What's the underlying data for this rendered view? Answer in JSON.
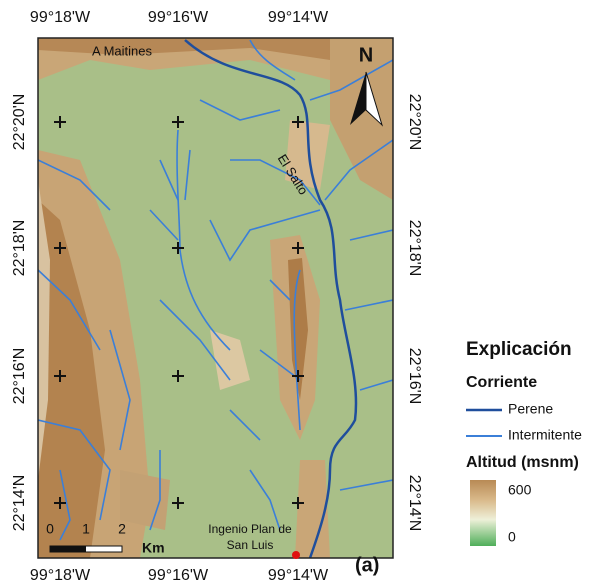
{
  "map": {
    "lon_labels": [
      "99°18'W",
      "99°16'W",
      "99°14'W"
    ],
    "lat_labels": [
      "22°20'N",
      "22°18'N",
      "22°16'N",
      "22°14'N"
    ],
    "places": [
      "A Maitines",
      "El Salto"
    ],
    "site": [
      "Ingenio Plan de",
      "San Luis"
    ],
    "north": "N",
    "scale": {
      "ticks": [
        0,
        1,
        2
      ],
      "unit": "Km"
    },
    "panel_label": "(a)"
  },
  "legend": {
    "title": "Explicación",
    "streams_title": "Corriente",
    "streams": [
      "Perene",
      "Intermitente"
    ],
    "elevation_title": "Altitud (msnm)",
    "elevation_labels": [
      600,
      0
    ]
  }
}
